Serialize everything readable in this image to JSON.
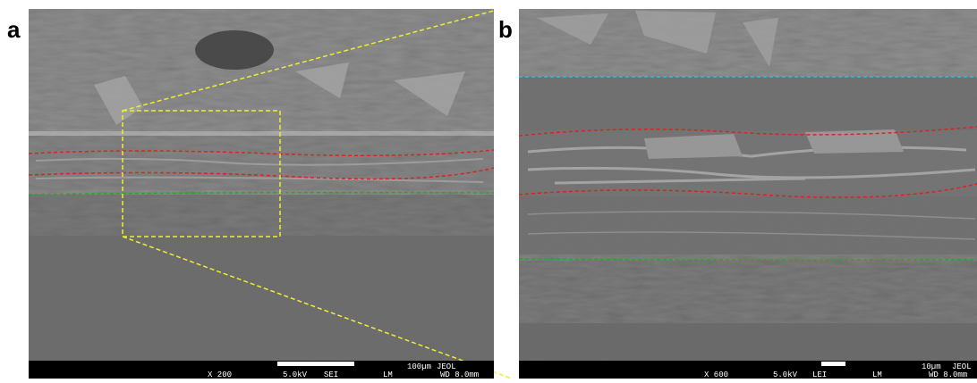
{
  "panels": [
    {
      "label": "a",
      "info_bar": {
        "magnification": "X 200",
        "voltage": "5.0kV",
        "detector": "SEI",
        "mode": "LM",
        "working_distance": "WD 8.0mm",
        "scale": "100µm",
        "brand": "JEOL"
      }
    },
    {
      "label": "b",
      "info_bar": {
        "magnification": "X 600",
        "voltage": "5.0kV",
        "detector": "LEI",
        "mode": "LM",
        "working_distance": "WD 8.0mm",
        "scale": "10µm",
        "brand": "JEOL"
      }
    }
  ]
}
